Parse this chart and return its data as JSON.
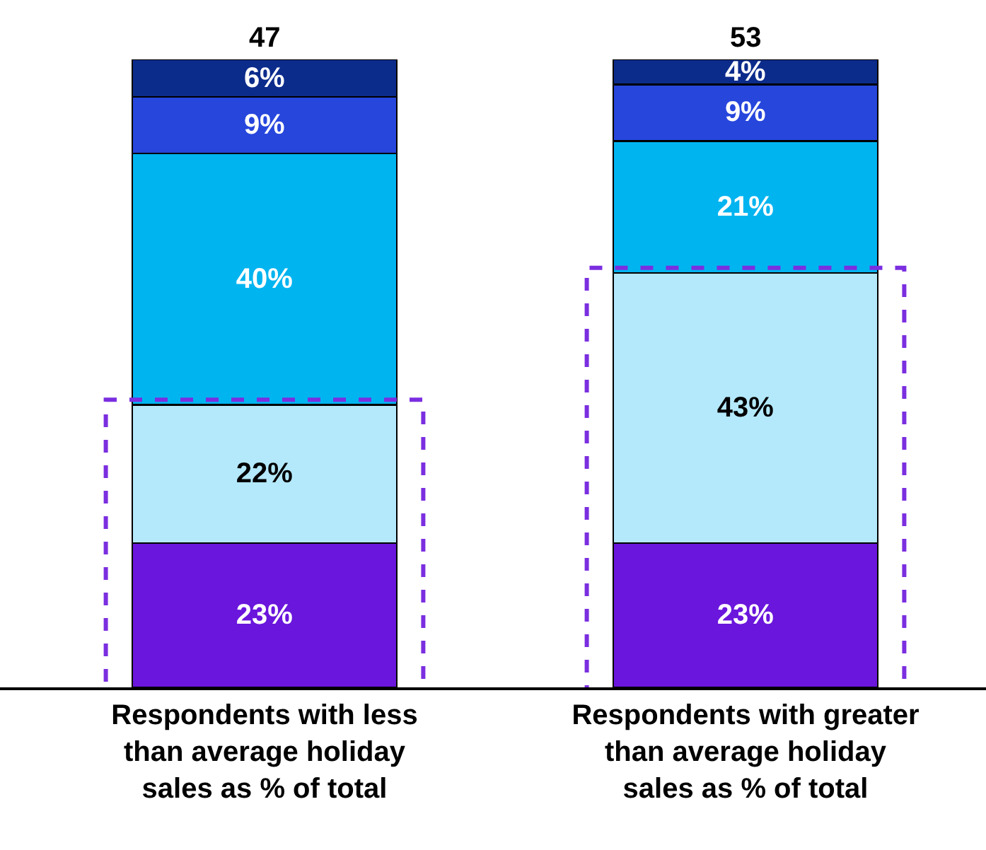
{
  "chart_data": {
    "type": "bar",
    "stacked": true,
    "categories": [
      "Respondents with less than average holiday sales as % of total",
      "Respondents with greater than average holiday sales as % of total"
    ],
    "series": [
      {
        "color": "#6a16dc",
        "values": [
          23,
          23
        ],
        "value_labels": [
          "23%",
          "23%"
        ]
      },
      {
        "color": "#b4e9fb",
        "values": [
          22,
          43
        ],
        "value_labels": [
          "22%",
          "43%"
        ]
      },
      {
        "color": "#00b4f0",
        "values": [
          40,
          21
        ],
        "value_labels": [
          "40%",
          "21%"
        ]
      },
      {
        "color": "#2646dc",
        "values": [
          9,
          9
        ],
        "value_labels": [
          "9%",
          "9%"
        ]
      },
      {
        "color": "#0c2c8c",
        "values": [
          6,
          4
        ],
        "value_labels": [
          "6%",
          "4%"
        ]
      }
    ],
    "annotations": [
      "47",
      "53"
    ]
  }
}
